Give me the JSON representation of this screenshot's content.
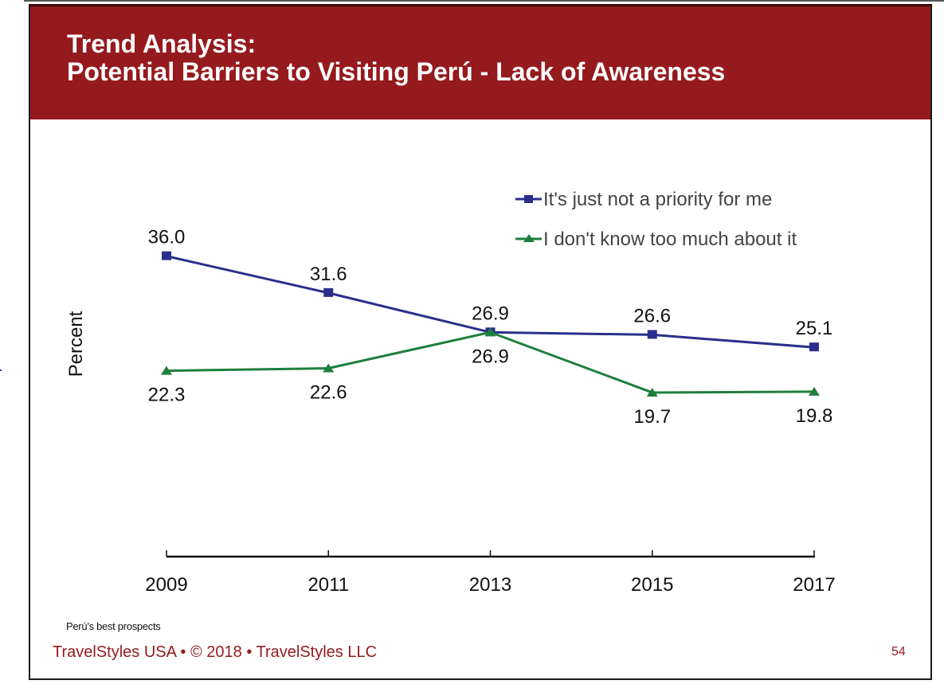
{
  "header": {
    "title_line1": "Trend Analysis:",
    "title_line2": "Potential Barriers to Visiting Perú - Lack of Awareness"
  },
  "colors": {
    "header_bg": "#951a1e",
    "series_priority": "#2b2f8c",
    "series_dontknow": "#1e7f3c",
    "footer_text": "#951a1e"
  },
  "chart_data": {
    "type": "line",
    "title": "Potential Barriers to Visiting Perú - Lack of Awareness",
    "xlabel": "",
    "ylabel": "Percent",
    "categories": [
      "2009",
      "2011",
      "2013",
      "2015",
      "2017"
    ],
    "ylim": [
      0,
      40
    ],
    "grid": false,
    "legend_position": "top-right",
    "series": [
      {
        "name": "It's just not a priority for me",
        "marker": "square",
        "values": [
          36.0,
          31.6,
          26.9,
          26.6,
          25.1
        ],
        "labels": [
          "36.0",
          "31.6",
          "26.9",
          "26.6",
          "25.1"
        ],
        "label_position": "above"
      },
      {
        "name": "I don't know too much about it",
        "marker": "triangle",
        "values": [
          22.3,
          22.6,
          26.9,
          19.7,
          19.8
        ],
        "labels": [
          "22.3",
          "22.6",
          "26.9",
          "19.7",
          "19.8"
        ],
        "label_position": "below"
      }
    ]
  },
  "footer": {
    "note": "Perú’s best prospects",
    "credit": "TravelStyles USA • © 2018 • TravelStyles LLC",
    "page_number": "54"
  }
}
